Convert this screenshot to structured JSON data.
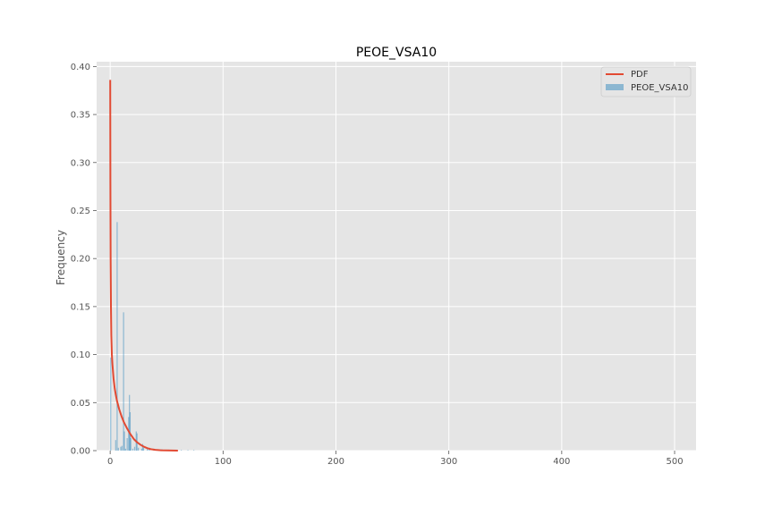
{
  "chart_data": {
    "type": "bar",
    "title": "PEOE_VSA10",
    "xlabel": "",
    "ylabel": "Frequency",
    "xlim": [
      -12,
      519
    ],
    "ylim": [
      0,
      0.405
    ],
    "xticks": [
      0,
      100,
      200,
      300,
      400,
      500
    ],
    "yticks": [
      0.0,
      0.05,
      0.1,
      0.15,
      0.2,
      0.25,
      0.3,
      0.35,
      0.4
    ],
    "xtick_labels": [
      "0",
      "100",
      "200",
      "300",
      "400",
      "500"
    ],
    "ytick_labels": [
      "0.00",
      "0.05",
      "0.10",
      "0.15",
      "0.20",
      "0.25",
      "0.30",
      "0.35",
      "0.40"
    ],
    "grid": true,
    "legend_position": "top-right",
    "colors": {
      "background": "#e5e5e5",
      "grid": "#ffffff",
      "bars": "#348abd",
      "pdf": "#e24a33"
    },
    "series": [
      {
        "name": "PDF",
        "kind": "line",
        "x": [
          0.05,
          0.2,
          0.4,
          0.7,
          1,
          1.5,
          2,
          3,
          4,
          5,
          6,
          8,
          10,
          12,
          15,
          18,
          21,
          24,
          27,
          30,
          33,
          36,
          40,
          45,
          50,
          60
        ],
        "y": [
          0.386,
          0.28,
          0.2,
          0.15,
          0.12,
          0.1,
          0.09,
          0.075,
          0.065,
          0.058,
          0.052,
          0.043,
          0.036,
          0.03,
          0.023,
          0.017,
          0.012,
          0.0085,
          0.006,
          0.004,
          0.0025,
          0.0015,
          0.0008,
          0.0004,
          0.0002,
          0.0
        ]
      },
      {
        "name": "PEOE_VSA10",
        "kind": "histogram",
        "bin_width": 0.7,
        "bins": [
          {
            "x": 0.0,
            "y": 0.097
          },
          {
            "x": 4.4,
            "y": 0.011
          },
          {
            "x": 5.7,
            "y": 0.238
          },
          {
            "x": 6.8,
            "y": 0.003
          },
          {
            "x": 8.9,
            "y": 0.004
          },
          {
            "x": 10.0,
            "y": 0.005
          },
          {
            "x": 11.4,
            "y": 0.144
          },
          {
            "x": 12.1,
            "y": 0.02
          },
          {
            "x": 13.2,
            "y": 0.002
          },
          {
            "x": 14.6,
            "y": 0.013
          },
          {
            "x": 15.9,
            "y": 0.035
          },
          {
            "x": 16.6,
            "y": 0.058
          },
          {
            "x": 17.2,
            "y": 0.04
          },
          {
            "x": 17.8,
            "y": 0.013
          },
          {
            "x": 19.6,
            "y": 0.002
          },
          {
            "x": 21.2,
            "y": 0.004
          },
          {
            "x": 22.6,
            "y": 0.02
          },
          {
            "x": 23.3,
            "y": 0.018
          },
          {
            "x": 24.5,
            "y": 0.003
          },
          {
            "x": 27.4,
            "y": 0.002
          },
          {
            "x": 28.3,
            "y": 0.007
          },
          {
            "x": 29.1,
            "y": 0.003
          },
          {
            "x": 32.4,
            "y": 0.002
          },
          {
            "x": 34.2,
            "y": 0.003
          },
          {
            "x": 38.1,
            "y": 0.002
          },
          {
            "x": 40.5,
            "y": 0.001
          },
          {
            "x": 45.3,
            "y": 0.0015
          },
          {
            "x": 51.2,
            "y": 0.001
          },
          {
            "x": 56.8,
            "y": 0.0008
          },
          {
            "x": 62.5,
            "y": 0.0006
          },
          {
            "x": 68.4,
            "y": 0.0005
          },
          {
            "x": 73.6,
            "y": 0.0004
          }
        ]
      }
    ]
  }
}
